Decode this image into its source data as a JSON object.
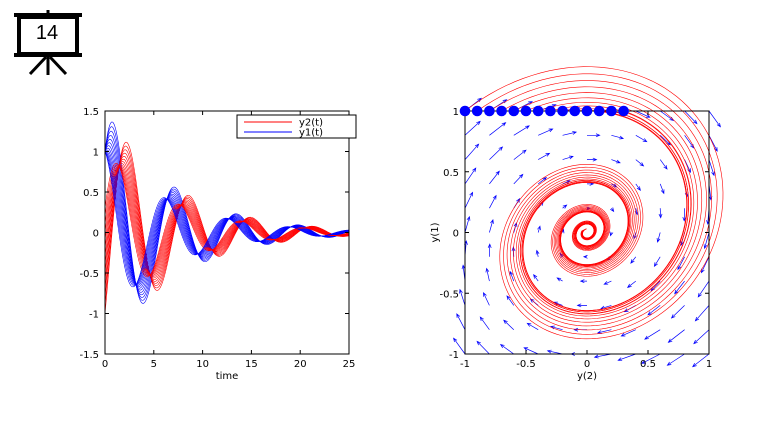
{
  "slide": {
    "number": "14",
    "icon": "presentation-easel-icon"
  },
  "chart_data": [
    {
      "type": "line",
      "title": "",
      "xlabel": "time",
      "ylabel": "",
      "xlim": [
        0,
        25
      ],
      "ylim": [
        -1.5,
        1.5
      ],
      "xticks": [
        "0",
        "5",
        "10",
        "15",
        "20",
        "25"
      ],
      "yticks": [
        "1.5",
        "1",
        "0.5",
        "0",
        "-0.5",
        "-1",
        "-1.5"
      ],
      "legend": {
        "placement": "top-right",
        "entries": [
          {
            "label": "y2(t)",
            "color": "#ff0000"
          },
          {
            "label": "y1(t)",
            "color": "#0000ff"
          }
        ]
      },
      "model": {
        "y1_0": 1,
        "y2_0_values": [
          -1,
          -0.9,
          -0.8,
          -0.7,
          -0.6,
          -0.5,
          -0.4,
          -0.3,
          -0.2,
          -0.1,
          0,
          0.1,
          0.2,
          0.3
        ],
        "damping": 0.28,
        "t_end": 25
      },
      "series": [
        {
          "name": "y2(t)",
          "color": "#ff0000"
        },
        {
          "name": "y1(t)",
          "color": "#0000ff"
        }
      ]
    },
    {
      "type": "line",
      "subtype": "phase-portrait-with-vector-field",
      "xlabel": "y(2)",
      "ylabel": "y(1)",
      "xlim": [
        -1,
        1
      ],
      "ylim": [
        -1,
        1
      ],
      "xticks": [
        "-1",
        "-0.5",
        "0",
        "0.5",
        "1"
      ],
      "yticks": [
        "1",
        "0.5",
        "0",
        "-0.5",
        "-1"
      ],
      "initial_points": {
        "x": [
          -1,
          -0.9,
          -0.8,
          -0.7,
          -0.6,
          -0.5,
          -0.4,
          -0.3,
          -0.2,
          -0.1,
          0,
          0.1,
          0.2,
          0.3
        ],
        "y": 1,
        "color": "#0000ff"
      },
      "trajectory_color": "#ff0000",
      "vector_field_color": "#0000ff"
    }
  ]
}
